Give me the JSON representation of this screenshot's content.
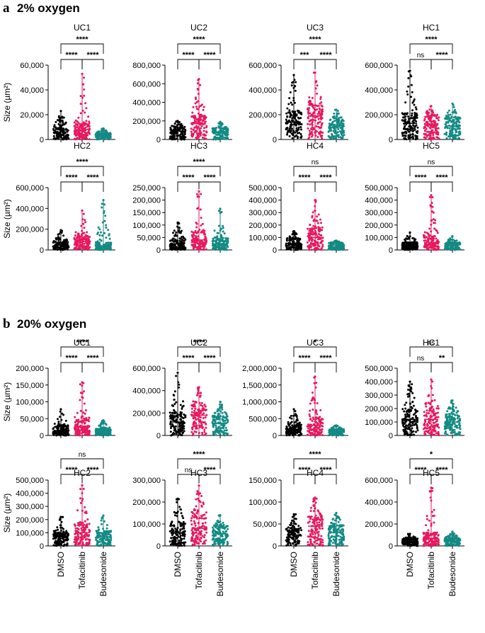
{
  "figure": {
    "sections": [
      {
        "letter": "a",
        "title": "2% oxygen"
      },
      {
        "letter": "b",
        "title": "20% oxygen"
      }
    ],
    "y_axis_label": "Size (µm²)",
    "categories": [
      "DMSO",
      "Tofacitinib",
      "Budesonide"
    ],
    "colors": {
      "DMSO": "#000000",
      "Tofacitinib": "#e6195f",
      "Budesonide": "#138a84"
    }
  },
  "chart_data": [
    {
      "type": "scatter",
      "section": "a",
      "title": "UC1",
      "ylim": [
        0,
        60000
      ],
      "yticks": [
        "0",
        "20,000",
        "40,000",
        "60,000"
      ],
      "series": [
        {
          "name": "DMSO",
          "median": 6000,
          "q3": 9500,
          "max": 23000
        },
        {
          "name": "Tofacitinib",
          "median": 8000,
          "q3": 13000,
          "max": 53000
        },
        {
          "name": "Budesonide",
          "median": 3500,
          "q3": 5000,
          "max": 9000
        }
      ],
      "comparisons": [
        {
          "pair": [
            "DMSO",
            "Tofacitinib"
          ],
          "label": "****"
        },
        {
          "pair": [
            "Tofacitinib",
            "Budesonide"
          ],
          "label": "****"
        },
        {
          "pair": [
            "DMSO",
            "Budesonide"
          ],
          "label": "****"
        }
      ]
    },
    {
      "type": "scatter",
      "section": "a",
      "title": "UC2",
      "ylim": [
        0,
        800000
      ],
      "yticks": [
        "0",
        "200,000",
        "400,000",
        "600,000",
        "800,000"
      ],
      "series": [
        {
          "name": "DMSO",
          "median": 90000,
          "q3": 130000,
          "max": 200000
        },
        {
          "name": "Tofacitinib",
          "median": 170000,
          "q3": 250000,
          "max": 650000
        },
        {
          "name": "Budesonide",
          "median": 80000,
          "q3": 120000,
          "max": 190000
        }
      ],
      "comparisons": [
        {
          "pair": [
            "DMSO",
            "Tofacitinib"
          ],
          "label": "****"
        },
        {
          "pair": [
            "Tofacitinib",
            "Budesonide"
          ],
          "label": "****"
        },
        {
          "pair": [
            "DMSO",
            "Budesonide"
          ],
          "label": "****"
        }
      ]
    },
    {
      "type": "scatter",
      "section": "a",
      "title": "UC3",
      "ylim": [
        0,
        600000
      ],
      "yticks": [
        "0",
        "200,000",
        "400,000",
        "600,000"
      ],
      "series": [
        {
          "name": "DMSO",
          "median": 140000,
          "q3": 220000,
          "max": 520000
        },
        {
          "name": "Tofacitinib",
          "median": 190000,
          "q3": 280000,
          "max": 540000
        },
        {
          "name": "Budesonide",
          "median": 100000,
          "q3": 150000,
          "max": 240000
        }
      ],
      "comparisons": [
        {
          "pair": [
            "DMSO",
            "Tofacitinib"
          ],
          "label": "***"
        },
        {
          "pair": [
            "Tofacitinib",
            "Budesonide"
          ],
          "label": "****"
        },
        {
          "pair": [
            "DMSO",
            "Budesonide"
          ],
          "label": "****"
        }
      ]
    },
    {
      "type": "scatter",
      "section": "a",
      "title": "HC1",
      "ylim": [
        0,
        600000
      ],
      "yticks": [
        "0",
        "200,000",
        "400,000",
        "600,000"
      ],
      "series": [
        {
          "name": "DMSO",
          "median": 130000,
          "q3": 210000,
          "max": 555000
        },
        {
          "name": "Tofacitinib",
          "median": 120000,
          "q3": 190000,
          "max": 270000
        },
        {
          "name": "Budesonide",
          "median": 110000,
          "q3": 170000,
          "max": 290000
        }
      ],
      "comparisons": [
        {
          "pair": [
            "DMSO",
            "Tofacitinib"
          ],
          "label": "ns"
        },
        {
          "pair": [
            "Tofacitinib",
            "Budesonide"
          ],
          "label": "****"
        },
        {
          "pair": [
            "DMSO",
            "Budesonide"
          ],
          "label": "****"
        }
      ]
    },
    {
      "type": "scatter",
      "section": "a",
      "title": "HC2",
      "ylim": [
        0,
        600000
      ],
      "yticks": [
        "0",
        "200,000",
        "400,000",
        "600,000"
      ],
      "series": [
        {
          "name": "DMSO",
          "median": 45000,
          "q3": 75000,
          "max": 190000
        },
        {
          "name": "Tofacitinib",
          "median": 80000,
          "q3": 130000,
          "max": 380000
        },
        {
          "name": "Budesonide",
          "median": 40000,
          "q3": 70000,
          "max": 480000
        }
      ],
      "comparisons": [
        {
          "pair": [
            "DMSO",
            "Tofacitinib"
          ],
          "label": "****"
        },
        {
          "pair": [
            "Tofacitinib",
            "Budesonide"
          ],
          "label": "****"
        },
        {
          "pair": [
            "DMSO",
            "Budesonide"
          ],
          "label": "****"
        }
      ]
    },
    {
      "type": "scatter",
      "section": "a",
      "title": "HC3",
      "ylim": [
        0,
        250000
      ],
      "yticks": [
        "0",
        "50,000",
        "100,000",
        "150,000",
        "200,000",
        "250,000"
      ],
      "series": [
        {
          "name": "DMSO",
          "median": 25000,
          "q3": 45000,
          "max": 110000
        },
        {
          "name": "Tofacitinib",
          "median": 40000,
          "q3": 75000,
          "max": 235000
        },
        {
          "name": "Budesonide",
          "median": 25000,
          "q3": 50000,
          "max": 165000
        }
      ],
      "comparisons": [
        {
          "pair": [
            "DMSO",
            "Tofacitinib"
          ],
          "label": "****"
        },
        {
          "pair": [
            "Tofacitinib",
            "Budesonide"
          ],
          "label": "****"
        },
        {
          "pair": [
            "DMSO",
            "Budesonide"
          ],
          "label": "****"
        }
      ]
    },
    {
      "type": "scatter",
      "section": "a",
      "title": "HC4",
      "ylim": [
        0,
        500000
      ],
      "yticks": [
        "0",
        "100,000",
        "200,000",
        "300,000",
        "400,000",
        "500,000"
      ],
      "series": [
        {
          "name": "DMSO",
          "median": 50000,
          "q3": 90000,
          "max": 150000
        },
        {
          "name": "Tofacitinib",
          "median": 100000,
          "q3": 170000,
          "max": 400000
        },
        {
          "name": "Budesonide",
          "median": 40000,
          "q3": 55000,
          "max": 75000
        }
      ],
      "comparisons": [
        {
          "pair": [
            "DMSO",
            "Tofacitinib"
          ],
          "label": "****"
        },
        {
          "pair": [
            "Tofacitinib",
            "Budesonide"
          ],
          "label": "****"
        },
        {
          "pair": [
            "DMSO",
            "Budesonide"
          ],
          "label": "ns"
        }
      ]
    },
    {
      "type": "scatter",
      "section": "a",
      "title": "HC5",
      "ylim": [
        0,
        500000
      ],
      "yticks": [
        "0",
        "100,000",
        "200,000",
        "300,000",
        "400,000",
        "500,000"
      ],
      "series": [
        {
          "name": "DMSO",
          "median": 35000,
          "q3": 60000,
          "max": 140000
        },
        {
          "name": "Tofacitinib",
          "median": 60000,
          "q3": 110000,
          "max": 440000
        },
        {
          "name": "Budesonide",
          "median": 40000,
          "q3": 60000,
          "max": 110000
        }
      ],
      "comparisons": [
        {
          "pair": [
            "DMSO",
            "Tofacitinib"
          ],
          "label": "****"
        },
        {
          "pair": [
            "Tofacitinib",
            "Budesonide"
          ],
          "label": "****"
        },
        {
          "pair": [
            "DMSO",
            "Budesonide"
          ],
          "label": "ns"
        }
      ]
    },
    {
      "type": "scatter",
      "section": "b",
      "title": "UC1",
      "ylim": [
        0,
        200000
      ],
      "yticks": [
        "0",
        "50,000",
        "100,000",
        "150,000",
        "200,000"
      ],
      "series": [
        {
          "name": "DMSO",
          "median": 15000,
          "q3": 28000,
          "max": 78000
        },
        {
          "name": "Tofacitinib",
          "median": 25000,
          "q3": 50000,
          "max": 158000
        },
        {
          "name": "Budesonide",
          "median": 12000,
          "q3": 20000,
          "max": 45000
        }
      ],
      "comparisons": [
        {
          "pair": [
            "DMSO",
            "Tofacitinib"
          ],
          "label": "****"
        },
        {
          "pair": [
            "Tofacitinib",
            "Budesonide"
          ],
          "label": "****"
        },
        {
          "pair": [
            "DMSO",
            "Budesonide"
          ],
          "label": "****"
        }
      ]
    },
    {
      "type": "scatter",
      "section": "b",
      "title": "UC2",
      "ylim": [
        0,
        600000
      ],
      "yticks": [
        "0",
        "200,000",
        "400,000",
        "600,000"
      ],
      "series": [
        {
          "name": "DMSO",
          "median": 120000,
          "q3": 200000,
          "max": 560000
        },
        {
          "name": "Tofacitinib",
          "median": 180000,
          "q3": 270000,
          "max": 430000
        },
        {
          "name": "Budesonide",
          "median": 110000,
          "q3": 170000,
          "max": 300000
        }
      ],
      "comparisons": [
        {
          "pair": [
            "DMSO",
            "Tofacitinib"
          ],
          "label": "****"
        },
        {
          "pair": [
            "Tofacitinib",
            "Budesonide"
          ],
          "label": "****"
        },
        {
          "pair": [
            "DMSO",
            "Budesonide"
          ],
          "label": "****"
        }
      ]
    },
    {
      "type": "scatter",
      "section": "b",
      "title": "UC3",
      "ylim": [
        0,
        2000000
      ],
      "yticks": [
        "0",
        "500,000",
        "1,000,000",
        "1,500,000",
        "2,000,000"
      ],
      "series": [
        {
          "name": "DMSO",
          "median": 180000,
          "q3": 300000,
          "max": 780000
        },
        {
          "name": "Tofacitinib",
          "median": 300000,
          "q3": 480000,
          "max": 1750000
        },
        {
          "name": "Budesonide",
          "median": 120000,
          "q3": 180000,
          "max": 300000
        }
      ],
      "comparisons": [
        {
          "pair": [
            "DMSO",
            "Tofacitinib"
          ],
          "label": "****"
        },
        {
          "pair": [
            "Tofacitinib",
            "Budesonide"
          ],
          "label": "****"
        },
        {
          "pair": [
            "DMSO",
            "Budesonide"
          ],
          "label": "*"
        }
      ]
    },
    {
      "type": "scatter",
      "section": "b",
      "title": "HC1",
      "ylim": [
        0,
        500000
      ],
      "yticks": [
        "0",
        "100,000",
        "200,000",
        "300,000",
        "400,000",
        "500,000"
      ],
      "series": [
        {
          "name": "DMSO",
          "median": 120000,
          "q3": 190000,
          "max": 400000
        },
        {
          "name": "Tofacitinib",
          "median": 120000,
          "q3": 200000,
          "max": 415000
        },
        {
          "name": "Budesonide",
          "median": 100000,
          "q3": 150000,
          "max": 260000
        }
      ],
      "comparisons": [
        {
          "pair": [
            "DMSO",
            "Tofacitinib"
          ],
          "label": "ns"
        },
        {
          "pair": [
            "Tofacitinib",
            "Budesonide"
          ],
          "label": "**"
        },
        {
          "pair": [
            "DMSO",
            "Budesonide"
          ],
          "label": "ns"
        }
      ]
    },
    {
      "type": "scatter",
      "section": "b",
      "title": "HC2",
      "ylim": [
        0,
        500000
      ],
      "yticks": [
        "0",
        "100,000",
        "200,000",
        "300,000",
        "400,000",
        "500,000"
      ],
      "series": [
        {
          "name": "DMSO",
          "median": 70000,
          "q3": 100000,
          "max": 220000
        },
        {
          "name": "Tofacitinib",
          "median": 100000,
          "q3": 160000,
          "max": 460000
        },
        {
          "name": "Budesonide",
          "median": 70000,
          "q3": 110000,
          "max": 230000
        }
      ],
      "comparisons": [
        {
          "pair": [
            "DMSO",
            "Tofacitinib"
          ],
          "label": "****"
        },
        {
          "pair": [
            "Tofacitinib",
            "Budesonide"
          ],
          "label": "****"
        },
        {
          "pair": [
            "DMSO",
            "Budesonide"
          ],
          "label": "ns"
        }
      ]
    },
    {
      "type": "scatter",
      "section": "b",
      "title": "HC3",
      "ylim": [
        0,
        300000
      ],
      "yticks": [
        "0",
        "100,000",
        "200,000",
        "300,000"
      ],
      "series": [
        {
          "name": "DMSO",
          "median": 60000,
          "q3": 100000,
          "max": 215000
        },
        {
          "name": "Tofacitinib",
          "median": 80000,
          "q3": 150000,
          "max": 275000
        },
        {
          "name": "Budesonide",
          "median": 55000,
          "q3": 90000,
          "max": 140000
        }
      ],
      "comparisons": [
        {
          "pair": [
            "DMSO",
            "Tofacitinib"
          ],
          "label": "ns"
        },
        {
          "pair": [
            "Tofacitinib",
            "Budesonide"
          ],
          "label": "****"
        },
        {
          "pair": [
            "DMSO",
            "Budesonide"
          ],
          "label": "****"
        }
      ]
    },
    {
      "type": "scatter",
      "section": "b",
      "title": "HC4",
      "ylim": [
        0,
        150000
      ],
      "yticks": [
        "0",
        "50,000",
        "100,000",
        "150,000"
      ],
      "series": [
        {
          "name": "DMSO",
          "median": 25000,
          "q3": 38000,
          "max": 72000
        },
        {
          "name": "Tofacitinib",
          "median": 45000,
          "q3": 65000,
          "max": 110000
        },
        {
          "name": "Budesonide",
          "median": 30000,
          "q3": 45000,
          "max": 75000
        }
      ],
      "comparisons": [
        {
          "pair": [
            "DMSO",
            "Tofacitinib"
          ],
          "label": "****"
        },
        {
          "pair": [
            "Tofacitinib",
            "Budesonide"
          ],
          "label": "****"
        },
        {
          "pair": [
            "DMSO",
            "Budesonide"
          ],
          "label": "****"
        }
      ]
    },
    {
      "type": "scatter",
      "section": "b",
      "title": "HC5",
      "ylim": [
        0,
        600000
      ],
      "yticks": [
        "0",
        "200,000",
        "400,000",
        "600,000"
      ],
      "series": [
        {
          "name": "DMSO",
          "median": 40000,
          "q3": 65000,
          "max": 110000
        },
        {
          "name": "Tofacitinib",
          "median": 70000,
          "q3": 120000,
          "max": 530000
        },
        {
          "name": "Budesonide",
          "median": 45000,
          "q3": 70000,
          "max": 130000
        }
      ],
      "comparisons": [
        {
          "pair": [
            "DMSO",
            "Tofacitinib"
          ],
          "label": "****"
        },
        {
          "pair": [
            "Tofacitinib",
            "Budesonide"
          ],
          "label": "****"
        },
        {
          "pair": [
            "DMSO",
            "Budesonide"
          ],
          "label": "*"
        }
      ]
    }
  ]
}
